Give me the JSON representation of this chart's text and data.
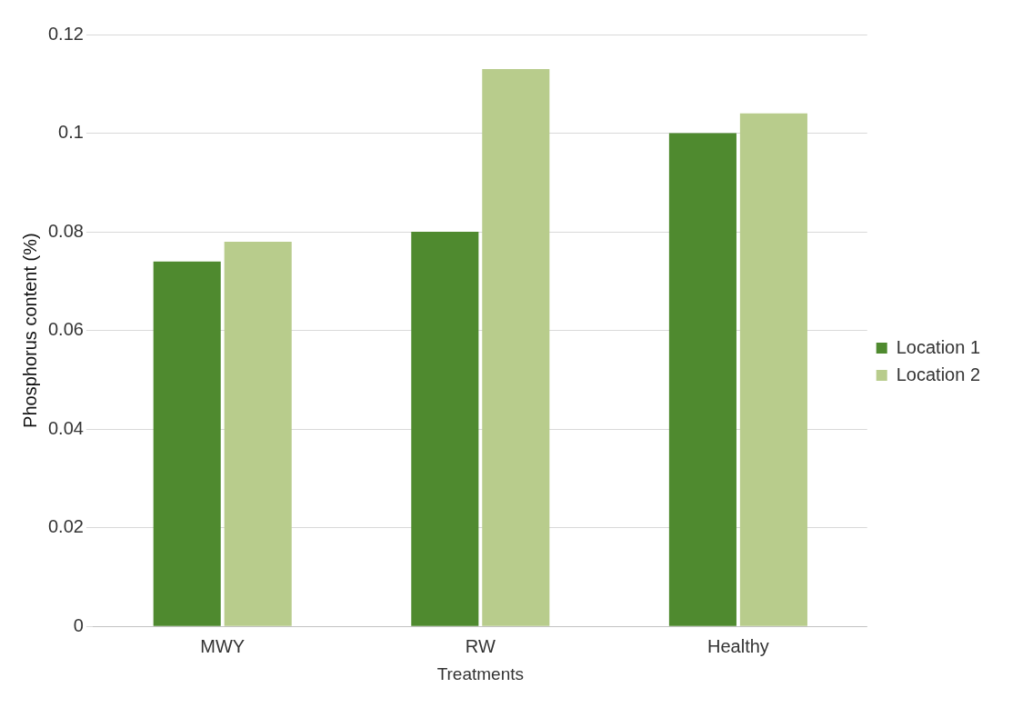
{
  "chart_data": {
    "type": "bar",
    "xlabel": "Treatments",
    "ylabel": "Phosphorus content (%)",
    "categories": [
      "MWY",
      "RW",
      "Healthy"
    ],
    "series": [
      {
        "name": "Location 1",
        "color": "#4f8a2f",
        "values": [
          0.074,
          0.08,
          0.1
        ]
      },
      {
        "name": "Location 2",
        "color": "#b8cc8c",
        "values": [
          0.078,
          0.113,
          0.104
        ]
      }
    ],
    "ylim": [
      0,
      0.12
    ],
    "yticks": [
      0,
      0.02,
      0.04,
      0.06,
      0.08,
      0.1,
      0.12
    ],
    "grid": "y",
    "legend": "right"
  }
}
